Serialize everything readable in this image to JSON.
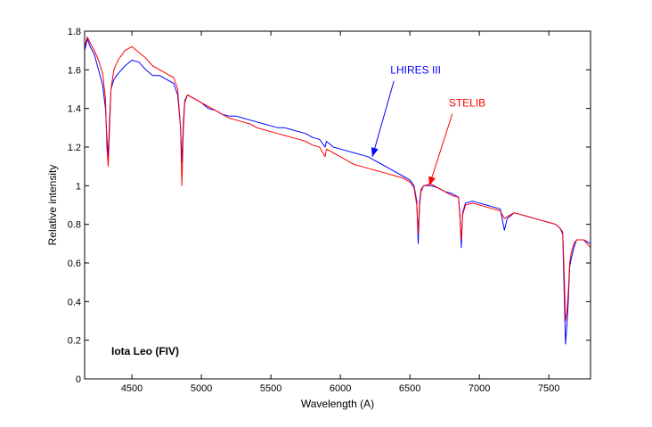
{
  "chart_data": {
    "type": "line",
    "title": "",
    "xlabel": "Wavelength (A)",
    "ylabel": "Relative intensity",
    "xlim": [
      4160,
      7800
    ],
    "ylim": [
      0,
      1.8
    ],
    "x_ticks": [
      4500,
      5000,
      5500,
      6000,
      6500,
      7000,
      7500
    ],
    "y_ticks": [
      0,
      0.2,
      0.4,
      0.6,
      0.8,
      1,
      1.2,
      1.4,
      1.6,
      1.8
    ],
    "x_tick_labels": [
      "4500",
      "5000",
      "5500",
      "6000",
      "6500",
      "7000",
      "7500"
    ],
    "y_tick_labels": [
      "0",
      "0.2",
      "0.4",
      "0.6",
      "0.8",
      "1",
      "1.2",
      "1.4",
      "1.6",
      "1.8"
    ],
    "grid": false,
    "colors": {
      "lhires": "#0000ff",
      "stelib": "#ff0000"
    },
    "star_label": "Iota Leo (FIV)",
    "annotations": [
      {
        "text": "LHIRES III",
        "color": "#0000ff",
        "target": [
          6230,
          1.15
        ],
        "text_at": [
          6360,
          1.58
        ]
      },
      {
        "text": "STELIB",
        "color": "#ff0000",
        "target": [
          6640,
          1.0
        ],
        "text_at": [
          6780,
          1.41
        ]
      }
    ],
    "series": [
      {
        "name": "LHIRES III",
        "color": "#0000ff",
        "x": [
          4160,
          4180,
          4200,
          4230,
          4260,
          4290,
          4310,
          4320,
          4330,
          4340,
          4350,
          4370,
          4400,
          4450,
          4500,
          4550,
          4600,
          4650,
          4700,
          4750,
          4800,
          4830,
          4850,
          4860,
          4870,
          4880,
          4900,
          4950,
          5000,
          5050,
          5100,
          5150,
          5200,
          5250,
          5300,
          5350,
          5400,
          5450,
          5500,
          5550,
          5600,
          5650,
          5700,
          5750,
          5800,
          5850,
          5890,
          5900,
          5950,
          6000,
          6050,
          6100,
          6150,
          6200,
          6250,
          6300,
          6350,
          6400,
          6450,
          6500,
          6530,
          6550,
          6560,
          6570,
          6580,
          6600,
          6650,
          6700,
          6750,
          6800,
          6850,
          6860,
          6870,
          6880,
          6900,
          6950,
          7000,
          7050,
          7100,
          7150,
          7180,
          7200,
          7250,
          7300,
          7350,
          7400,
          7450,
          7500,
          7550,
          7580,
          7600,
          7610,
          7620,
          7630,
          7640,
          7650,
          7660,
          7680,
          7700,
          7750,
          7800
        ],
        "y": [
          1.7,
          1.76,
          1.72,
          1.68,
          1.6,
          1.52,
          1.4,
          1.25,
          1.15,
          1.35,
          1.5,
          1.55,
          1.58,
          1.62,
          1.65,
          1.64,
          1.6,
          1.57,
          1.57,
          1.55,
          1.53,
          1.47,
          1.3,
          1.12,
          1.32,
          1.44,
          1.47,
          1.45,
          1.43,
          1.4,
          1.39,
          1.37,
          1.36,
          1.36,
          1.35,
          1.34,
          1.33,
          1.32,
          1.31,
          1.3,
          1.3,
          1.29,
          1.28,
          1.27,
          1.25,
          1.24,
          1.2,
          1.23,
          1.2,
          1.19,
          1.18,
          1.17,
          1.16,
          1.15,
          1.13,
          1.11,
          1.09,
          1.07,
          1.05,
          1.03,
          1.0,
          0.92,
          0.7,
          0.9,
          0.97,
          1.0,
          1.0,
          0.99,
          0.97,
          0.96,
          0.94,
          0.85,
          0.68,
          0.86,
          0.91,
          0.92,
          0.91,
          0.9,
          0.89,
          0.88,
          0.77,
          0.83,
          0.86,
          0.85,
          0.84,
          0.83,
          0.82,
          0.81,
          0.8,
          0.78,
          0.75,
          0.45,
          0.18,
          0.28,
          0.4,
          0.58,
          0.62,
          0.68,
          0.72,
          0.72,
          0.7
        ]
      },
      {
        "name": "STELIB",
        "color": "#ff0000",
        "x": [
          4160,
          4180,
          4200,
          4230,
          4260,
          4290,
          4310,
          4320,
          4330,
          4340,
          4350,
          4370,
          4400,
          4450,
          4500,
          4550,
          4600,
          4650,
          4700,
          4750,
          4800,
          4830,
          4850,
          4860,
          4870,
          4880,
          4900,
          4950,
          5000,
          5050,
          5100,
          5150,
          5200,
          5250,
          5300,
          5350,
          5400,
          5450,
          5500,
          5550,
          5600,
          5650,
          5700,
          5750,
          5800,
          5850,
          5890,
          5900,
          5950,
          6000,
          6050,
          6100,
          6150,
          6200,
          6250,
          6300,
          6350,
          6400,
          6450,
          6500,
          6530,
          6550,
          6560,
          6570,
          6580,
          6600,
          6650,
          6700,
          6750,
          6800,
          6850,
          6860,
          6870,
          6880,
          6900,
          6950,
          7000,
          7050,
          7100,
          7150,
          7180,
          7200,
          7250,
          7300,
          7350,
          7400,
          7450,
          7500,
          7550,
          7580,
          7600,
          7610,
          7620,
          7630,
          7640,
          7650,
          7660,
          7680,
          7700,
          7750,
          7800
        ],
        "y": [
          1.72,
          1.77,
          1.74,
          1.7,
          1.65,
          1.58,
          1.45,
          1.2,
          1.1,
          1.3,
          1.5,
          1.6,
          1.65,
          1.7,
          1.72,
          1.69,
          1.66,
          1.62,
          1.6,
          1.58,
          1.56,
          1.5,
          1.3,
          1.0,
          1.28,
          1.43,
          1.47,
          1.45,
          1.43,
          1.41,
          1.39,
          1.37,
          1.35,
          1.34,
          1.33,
          1.32,
          1.3,
          1.29,
          1.28,
          1.27,
          1.26,
          1.25,
          1.24,
          1.23,
          1.21,
          1.2,
          1.15,
          1.19,
          1.17,
          1.15,
          1.13,
          1.11,
          1.1,
          1.09,
          1.08,
          1.07,
          1.06,
          1.05,
          1.04,
          1.02,
          0.99,
          0.9,
          0.75,
          0.92,
          0.98,
          1.0,
          1.01,
          0.99,
          0.97,
          0.95,
          0.94,
          0.84,
          0.72,
          0.85,
          0.9,
          0.91,
          0.9,
          0.89,
          0.88,
          0.87,
          0.83,
          0.84,
          0.86,
          0.85,
          0.84,
          0.83,
          0.82,
          0.81,
          0.8,
          0.78,
          0.76,
          0.55,
          0.3,
          0.35,
          0.45,
          0.6,
          0.65,
          0.7,
          0.72,
          0.72,
          0.68
        ]
      }
    ]
  }
}
